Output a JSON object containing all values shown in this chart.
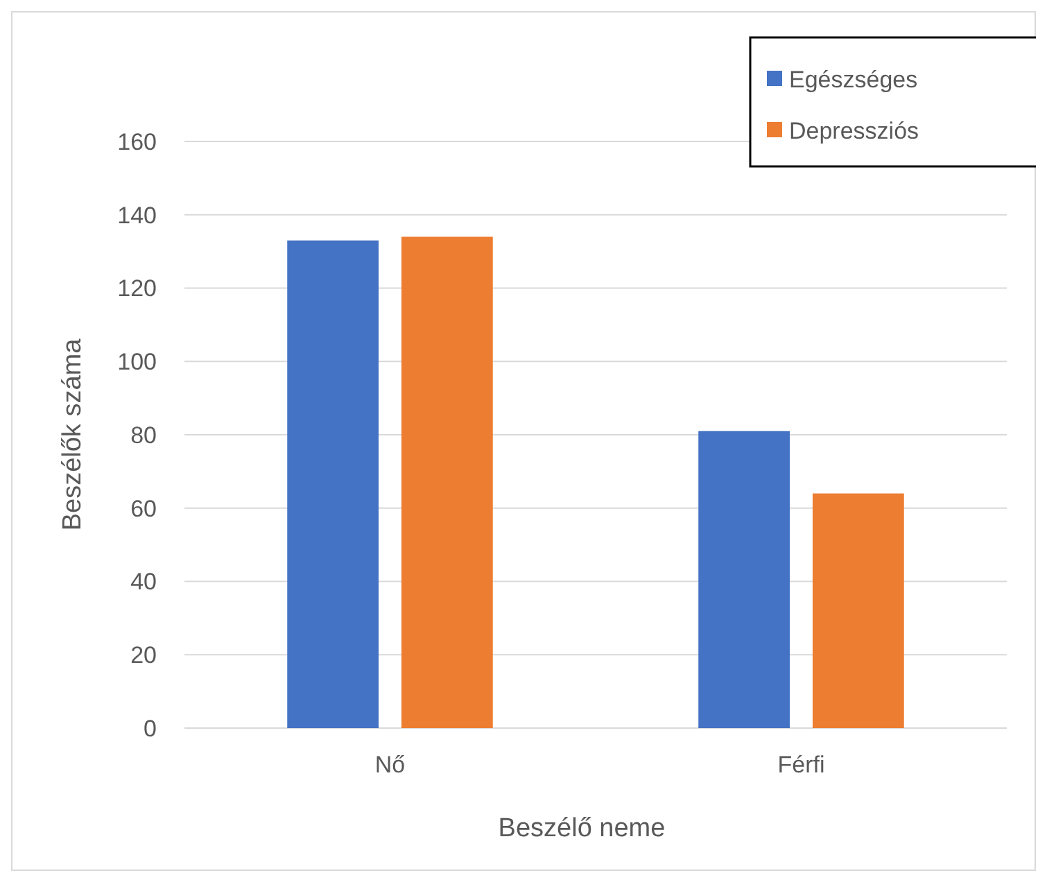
{
  "chart_data": {
    "type": "bar",
    "xlabel": "Beszélő neme",
    "ylabel": "Beszélők száma",
    "categories": [
      "Nő",
      "Férfi"
    ],
    "series": [
      {
        "name": "Egészséges",
        "color": "#4472c4",
        "values": [
          133,
          81
        ]
      },
      {
        "name": "Depressziós",
        "color": "#ed7d31",
        "values": [
          134,
          64
        ]
      }
    ],
    "ylim": [
      0,
      160
    ],
    "yticks": [
      0,
      20,
      40,
      60,
      80,
      100,
      120,
      140,
      160
    ],
    "grid": "y",
    "legend": "top right"
  }
}
